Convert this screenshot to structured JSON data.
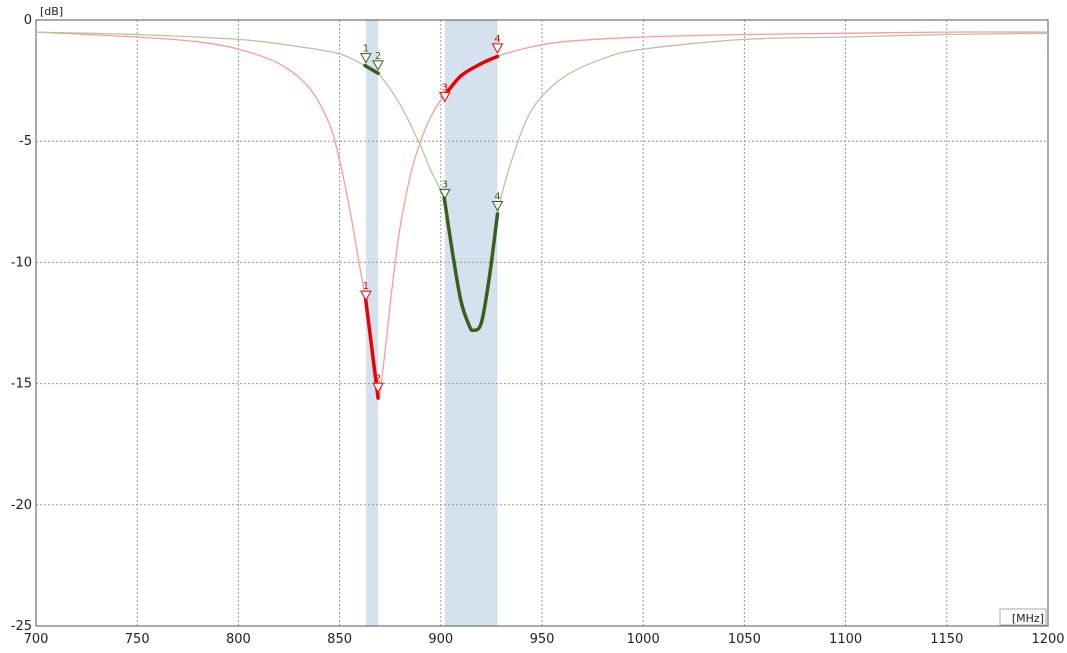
{
  "chart_data": {
    "type": "line",
    "xlabel": "[MHz]",
    "ylabel": "[dB]",
    "xlim": [
      700,
      1200
    ],
    "ylim": [
      -25,
      0
    ],
    "x_ticks": [
      700,
      750,
      800,
      850,
      900,
      950,
      1000,
      1050,
      1100,
      1150,
      1200
    ],
    "y_ticks": [
      0,
      -5,
      -10,
      -15,
      -20,
      -25
    ],
    "grid": true,
    "bands": [
      {
        "from": 863,
        "to": 869
      },
      {
        "from": 902,
        "to": 928
      }
    ],
    "series": [
      {
        "color": "#ff9a9a",
        "highlight_color": "#ee0000",
        "x": [
          700,
          750,
          780,
          800,
          820,
          835,
          845,
          850,
          855,
          860,
          863,
          866,
          869,
          872,
          876,
          880,
          885,
          890,
          895,
          900,
          902,
          910,
          920,
          928,
          940,
          960,
          1000,
          1050,
          1100,
          1150,
          1200
        ],
        "y": [
          -0.5,
          -0.7,
          -0.9,
          -1.2,
          -1.8,
          -2.8,
          -4.3,
          -5.8,
          -7.8,
          -10.2,
          -11.6,
          -13.6,
          -15.6,
          -14.0,
          -11.0,
          -8.5,
          -6.4,
          -5.0,
          -4.0,
          -3.3,
          -3.1,
          -2.3,
          -1.8,
          -1.5,
          -1.2,
          -0.9,
          -0.7,
          -0.6,
          -0.55,
          -0.5,
          -0.5
        ],
        "highlight_ranges": [
          [
            863,
            869
          ],
          [
            902,
            928
          ]
        ],
        "markers": [
          {
            "label": "1",
            "x": 863,
            "y": -11.6
          },
          {
            "label": "2",
            "x": 869,
            "y": -15.4
          },
          {
            "label": "3",
            "x": 902,
            "y": -3.4
          },
          {
            "label": "4",
            "x": 928,
            "y": -1.4
          }
        ]
      },
      {
        "color": "#b7c4a0",
        "highlight_color": "#3a5f1c",
        "x": [
          700,
          750,
          800,
          830,
          850,
          863,
          869,
          880,
          890,
          895,
          902,
          906,
          910,
          914,
          916,
          920,
          924,
          928,
          935,
          945,
          960,
          980,
          1000,
          1050,
          1100,
          1150,
          1200
        ],
        "y": [
          -0.5,
          -0.6,
          -0.8,
          -1.1,
          -1.4,
          -1.9,
          -2.2,
          -3.5,
          -5.2,
          -6.2,
          -7.5,
          -9.7,
          -11.6,
          -12.6,
          -12.8,
          -12.5,
          -10.6,
          -8.0,
          -5.8,
          -3.7,
          -2.4,
          -1.6,
          -1.2,
          -0.8,
          -0.7,
          -0.6,
          -0.55
        ],
        "highlight_ranges": [
          [
            863,
            869
          ],
          [
            902,
            928
          ]
        ],
        "markers": [
          {
            "label": "1",
            "x": 863,
            "y": -1.8
          },
          {
            "label": "2",
            "x": 869,
            "y": -2.1
          },
          {
            "label": "3",
            "x": 902,
            "y": -7.4
          },
          {
            "label": "4",
            "x": 928,
            "y": -7.9
          }
        ]
      }
    ]
  }
}
